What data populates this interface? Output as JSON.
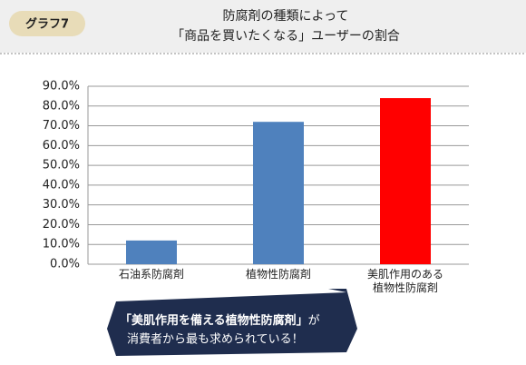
{
  "badge": "グラフ7",
  "chart_data": {
    "type": "bar",
    "title": [
      "防腐剤の種類によって",
      "「商品を買いたくなる」ユーザーの割合"
    ],
    "categories": [
      "石油系防腐剤",
      "植物性防腐剤",
      "美肌作用のある\n植物性防腐剤"
    ],
    "values": [
      12,
      72,
      84
    ],
    "colors": [
      "#4f81bd",
      "#4f81bd",
      "#ff0000"
    ],
    "ylim": [
      0,
      90
    ],
    "yticks": [
      {
        "value": 0,
        "label": "0.0%"
      },
      {
        "value": 10,
        "label": "10.0%"
      },
      {
        "value": 20,
        "label": "20.0%"
      },
      {
        "value": 30,
        "label": "30.0%"
      },
      {
        "value": 40,
        "label": "40.0%"
      },
      {
        "value": 50,
        "label": "50.0%"
      },
      {
        "value": 60,
        "label": "60.0%"
      },
      {
        "value": 70,
        "label": "70.0%"
      },
      {
        "value": 80,
        "label": "80.0%"
      },
      {
        "value": 90,
        "label": "90.0%"
      }
    ],
    "grid": true,
    "annotation": {
      "line1_bold": "「美肌作用を備える植物性防腐剤」",
      "line1_rest": "が",
      "line2": "消費者から最も求められている！"
    }
  }
}
